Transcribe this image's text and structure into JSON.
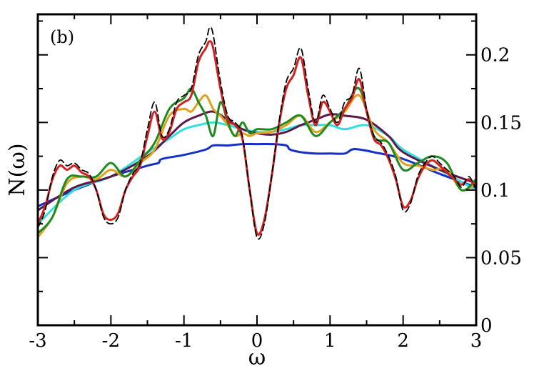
{
  "chart_data": {
    "type": "line",
    "panel_label": "(b)",
    "xlabel": "ω",
    "ylabel": "N(ω)",
    "xlim": [
      -3,
      3
    ],
    "ylim": [
      0,
      0.23
    ],
    "x_ticks": [
      -3,
      -2,
      -1,
      0,
      1,
      2,
      3
    ],
    "x_tick_labels": [
      "-3",
      "-2",
      "-1",
      "0",
      "1",
      "2",
      "3"
    ],
    "y_ticks": [
      0,
      0.05,
      0.1,
      0.15,
      0.2
    ],
    "y_tick_labels": [
      "0",
      "0.05",
      "0.1",
      "0.15",
      "0.2"
    ],
    "y_axis_side": "right",
    "grid": false,
    "series": [
      {
        "color": "#000000",
        "dashed": true,
        "x": [
          -3.0,
          -2.9,
          -2.8,
          -2.7,
          -2.6,
          -2.5,
          -2.4,
          -2.3,
          -2.2,
          -2.1,
          -2.0,
          -1.9,
          -1.8,
          -1.7,
          -1.6,
          -1.5,
          -1.4,
          -1.3,
          -1.2,
          -1.1,
          -1.0,
          -0.9,
          -0.8,
          -0.7,
          -0.65,
          -0.6,
          -0.5,
          -0.4,
          -0.3,
          -0.2,
          -0.1,
          0.0,
          0.1,
          0.2,
          0.3,
          0.4,
          0.5,
          0.6,
          0.7,
          0.8,
          0.9,
          1.0,
          1.1,
          1.2,
          1.3,
          1.4,
          1.5,
          1.6,
          1.7,
          1.8,
          1.9,
          2.0,
          2.1,
          2.2,
          2.3,
          2.4,
          2.5,
          2.6,
          2.7,
          2.8,
          2.9,
          3.0
        ],
        "y": [
          0.072,
          0.085,
          0.11,
          0.122,
          0.118,
          0.12,
          0.115,
          0.112,
          0.1,
          0.08,
          0.075,
          0.08,
          0.1,
          0.112,
          0.12,
          0.145,
          0.165,
          0.14,
          0.145,
          0.165,
          0.17,
          0.175,
          0.2,
          0.21,
          0.22,
          0.215,
          0.18,
          0.155,
          0.15,
          0.14,
          0.1,
          0.065,
          0.075,
          0.11,
          0.15,
          0.18,
          0.19,
          0.205,
          0.175,
          0.15,
          0.17,
          0.16,
          0.15,
          0.165,
          0.17,
          0.19,
          0.16,
          0.14,
          0.135,
          0.125,
          0.11,
          0.085,
          0.09,
          0.11,
          0.12,
          0.125,
          0.12,
          0.115,
          0.11,
          0.102,
          0.11,
          0.1
        ]
      },
      {
        "color": "#d42020",
        "x": [
          -3.0,
          -2.9,
          -2.8,
          -2.7,
          -2.6,
          -2.5,
          -2.4,
          -2.3,
          -2.2,
          -2.1,
          -2.0,
          -1.9,
          -1.8,
          -1.7,
          -1.6,
          -1.5,
          -1.4,
          -1.3,
          -1.2,
          -1.1,
          -1.0,
          -0.9,
          -0.8,
          -0.7,
          -0.65,
          -0.6,
          -0.5,
          -0.4,
          -0.3,
          -0.2,
          -0.1,
          0.0,
          0.1,
          0.2,
          0.3,
          0.4,
          0.5,
          0.6,
          0.7,
          0.8,
          0.9,
          1.0,
          1.1,
          1.2,
          1.3,
          1.4,
          1.5,
          1.6,
          1.7,
          1.8,
          1.9,
          2.0,
          2.1,
          2.2,
          2.3,
          2.4,
          2.5,
          2.6,
          2.7,
          2.8,
          2.9,
          3.0
        ],
        "y": [
          0.075,
          0.088,
          0.108,
          0.118,
          0.115,
          0.118,
          0.113,
          0.11,
          0.1,
          0.082,
          0.078,
          0.083,
          0.1,
          0.11,
          0.118,
          0.14,
          0.158,
          0.138,
          0.143,
          0.16,
          0.165,
          0.17,
          0.195,
          0.205,
          0.21,
          0.205,
          0.175,
          0.152,
          0.148,
          0.138,
          0.1,
          0.068,
          0.078,
          0.11,
          0.148,
          0.175,
          0.185,
          0.198,
          0.17,
          0.148,
          0.165,
          0.158,
          0.148,
          0.16,
          0.168,
          0.182,
          0.158,
          0.138,
          0.133,
          0.123,
          0.108,
          0.088,
          0.092,
          0.108,
          0.118,
          0.122,
          0.118,
          0.113,
          0.108,
          0.104,
          0.108,
          0.102
        ]
      },
      {
        "color": "#1f8a1f",
        "x": [
          -3.0,
          -2.8,
          -2.6,
          -2.4,
          -2.2,
          -2.0,
          -1.8,
          -1.6,
          -1.4,
          -1.2,
          -1.0,
          -0.9,
          -0.8,
          -0.7,
          -0.6,
          -0.5,
          -0.4,
          -0.3,
          -0.2,
          -0.1,
          0.0,
          0.2,
          0.4,
          0.6,
          0.8,
          1.0,
          1.2,
          1.4,
          1.6,
          1.8,
          2.0,
          2.2,
          2.4,
          2.6,
          2.8,
          3.0
        ],
        "y": [
          0.068,
          0.08,
          0.108,
          0.11,
          0.11,
          0.12,
          0.11,
          0.122,
          0.135,
          0.16,
          0.168,
          0.175,
          0.165,
          0.155,
          0.14,
          0.165,
          0.15,
          0.14,
          0.15,
          0.142,
          0.145,
          0.145,
          0.15,
          0.155,
          0.14,
          0.15,
          0.16,
          0.175,
          0.14,
          0.135,
          0.115,
          0.12,
          0.125,
          0.12,
          0.1,
          0.108
        ]
      },
      {
        "color": "#e0a020",
        "x": [
          -3.0,
          -2.8,
          -2.6,
          -2.4,
          -2.2,
          -2.0,
          -1.8,
          -1.6,
          -1.4,
          -1.2,
          -1.0,
          -0.9,
          -0.8,
          -0.7,
          -0.6,
          -0.5,
          -0.4,
          -0.3,
          -0.2,
          -0.1,
          0.0,
          0.2,
          0.4,
          0.6,
          0.8,
          1.0,
          1.2,
          1.4,
          1.6,
          1.8,
          2.0,
          2.2,
          2.4,
          2.6,
          2.8,
          3.0
        ],
        "y": [
          0.065,
          0.08,
          0.105,
          0.11,
          0.108,
          0.115,
          0.11,
          0.12,
          0.13,
          0.155,
          0.16,
          0.158,
          0.165,
          0.17,
          0.16,
          0.155,
          0.148,
          0.14,
          0.142,
          0.14,
          0.142,
          0.143,
          0.148,
          0.155,
          0.143,
          0.15,
          0.158,
          0.17,
          0.145,
          0.135,
          0.12,
          0.118,
          0.115,
          0.115,
          0.1,
          0.105
        ]
      },
      {
        "color": "#5a1a4a",
        "x": [
          -3.0,
          -2.5,
          -2.0,
          -1.5,
          -1.2,
          -1.0,
          -0.8,
          -0.6,
          -0.4,
          -0.2,
          0.0,
          0.2,
          0.4,
          0.6,
          0.8,
          1.0,
          1.2,
          1.5,
          1.8,
          2.0,
          2.5,
          3.0
        ],
        "y": [
          0.085,
          0.102,
          0.11,
          0.125,
          0.14,
          0.15,
          0.155,
          0.158,
          0.152,
          0.145,
          0.142,
          0.141,
          0.143,
          0.148,
          0.152,
          0.156,
          0.155,
          0.152,
          0.14,
          0.128,
          0.115,
          0.105
        ]
      },
      {
        "color": "#30e0e0",
        "x": [
          -3.0,
          -2.5,
          -2.0,
          -1.5,
          -1.2,
          -1.0,
          -0.8,
          -0.6,
          -0.4,
          -0.2,
          0.0,
          0.2,
          0.4,
          0.6,
          0.8,
          1.0,
          1.2,
          1.5,
          1.8,
          2.0,
          2.5,
          3.0
        ],
        "y": [
          0.075,
          0.1,
          0.11,
          0.128,
          0.138,
          0.145,
          0.148,
          0.15,
          0.148,
          0.145,
          0.143,
          0.143,
          0.145,
          0.148,
          0.148,
          0.148,
          0.145,
          0.148,
          0.14,
          0.13,
          0.115,
          0.1
        ]
      },
      {
        "color": "#1530c8",
        "x": [
          -3.0,
          -2.5,
          -2.0,
          -1.5,
          -1.35,
          -1.3,
          -1.0,
          -0.7,
          -0.6,
          -0.4,
          -0.2,
          0.0,
          0.2,
          0.4,
          0.45,
          0.6,
          0.8,
          1.0,
          1.2,
          1.3,
          1.4,
          1.6,
          2.0,
          2.5,
          3.0
        ],
        "y": [
          0.088,
          0.1,
          0.11,
          0.118,
          0.12,
          0.123,
          0.126,
          0.13,
          0.133,
          0.133,
          0.134,
          0.134,
          0.134,
          0.133,
          0.13,
          0.128,
          0.127,
          0.127,
          0.127,
          0.13,
          0.13,
          0.128,
          0.123,
          0.112,
          0.102
        ]
      }
    ]
  }
}
